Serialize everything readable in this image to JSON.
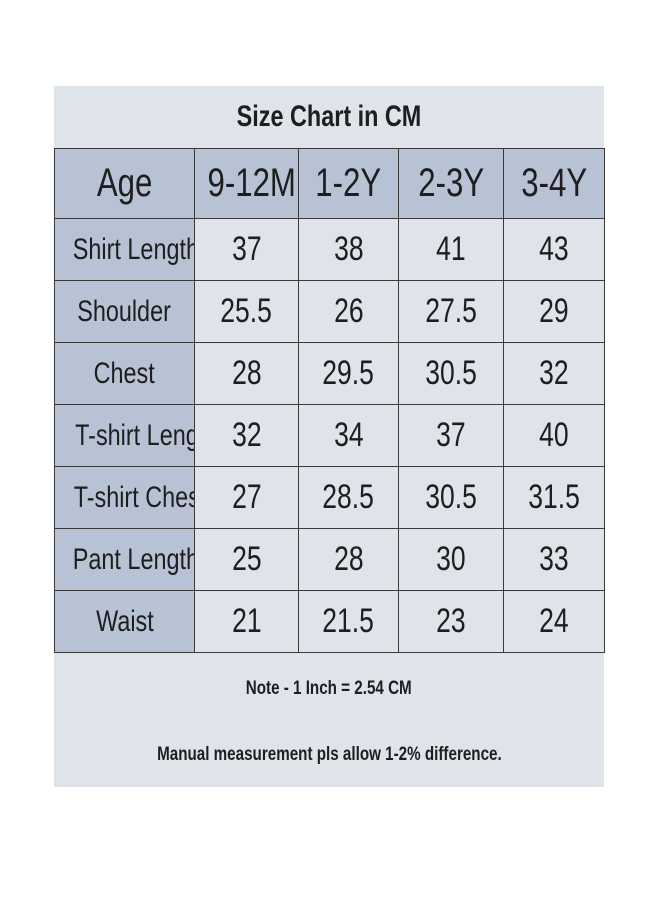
{
  "title": "Size Chart in CM",
  "table": {
    "header": [
      "Age",
      "9-12M",
      "1-2Y",
      "2-3Y",
      "3-4Y"
    ],
    "rows": [
      {
        "label": "Shirt  Length",
        "values": [
          "37",
          "38",
          "41",
          "43"
        ]
      },
      {
        "label": "Shoulder",
        "values": [
          "25.5",
          "26",
          "27.5",
          "29"
        ]
      },
      {
        "label": "Chest",
        "values": [
          "28",
          "29.5",
          "30.5",
          "32"
        ]
      },
      {
        "label": "T-shirt Length",
        "values": [
          "32",
          "34",
          "37",
          "40"
        ]
      },
      {
        "label": "T-shirt Chest",
        "values": [
          "27",
          "28.5",
          "30.5",
          "31.5"
        ]
      },
      {
        "label": "Pant Length",
        "values": [
          "25",
          "28",
          "30",
          "33"
        ]
      },
      {
        "label": "Waist",
        "values": [
          "21",
          "21.5",
          "23",
          "24"
        ]
      }
    ]
  },
  "notes": {
    "conversion": "Note - 1 Inch = 2.54 CM",
    "disclaimer": "Manual measurement pls allow 1-2% difference."
  },
  "colors": {
    "header_fill": "#b7c2d4",
    "body_fill": "#dfe3ea",
    "border": "#3a3a3a"
  }
}
